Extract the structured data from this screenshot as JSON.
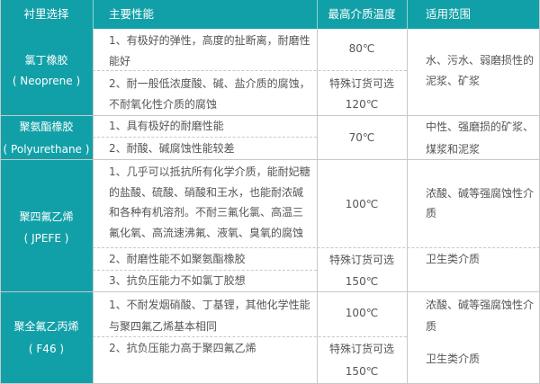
{
  "header": {
    "lining": "衬里选择",
    "properties": "主要性能",
    "max_temp": "最高介质温度",
    "scope": "适用范围"
  },
  "rows": [
    {
      "lining": [
        "氯丁橡胶",
        "( Neoprene )"
      ],
      "properties": [
        [
          "1、有极好的弹性，高度的扯断离，耐磨性",
          "能好"
        ],
        [
          "2、耐一般低浓度酸、碱、盐介质的腐蚀，",
          "不耐氧化性介质的腐蚀"
        ]
      ],
      "temps": [
        [
          "80℃"
        ],
        [
          "特殊订货可选",
          "120℃"
        ]
      ],
      "scope": [
        [
          "水、污水、弱磨损性的",
          "泥浆、矿浆"
        ]
      ]
    },
    {
      "lining": [
        "聚氨酯橡胶",
        "( Polyurethane )"
      ],
      "properties": [
        [
          "1、具有极好的耐磨性能"
        ],
        [
          "2、耐酸、碱腐蚀性能较差"
        ]
      ],
      "temps": [
        [
          "70℃"
        ]
      ],
      "scope": [
        [
          "中性、强磨损的矿浆、",
          "煤浆和泥浆"
        ]
      ]
    },
    {
      "lining": [
        "聚四氟乙烯",
        "( JPEFE )"
      ],
      "properties": [
        [
          "1、几乎可以抵抗所有化学介质，能耐妃糖",
          "的盐酸、硫酸、硝酸和王水，也能耐浓碱",
          "和各种有机溶剂。不耐三氟化氯、高温三",
          "氟化氧、高流速沸氟、液氧、臭氧的腐蚀"
        ],
        [
          "2、耐磨性能不如聚氨酯橡胶"
        ],
        [
          "3、抗负压能力不如氯丁胶想"
        ]
      ],
      "temps": [
        [
          "100℃"
        ],
        [
          "特殊订货可选",
          "150℃"
        ]
      ],
      "scope": [
        [
          "浓酸、碱等强腐蚀性介",
          "质"
        ],
        [
          "卫生类介质"
        ]
      ]
    },
    {
      "lining": [
        "聚全氟乙丙烯",
        "( F46 )"
      ],
      "properties": [
        [
          "1、不耐发烟硝酸、丁基锂，其他化学性能",
          "与聚四氟乙烯基本相同"
        ],
        [
          "2、抗负压能力高于聚四氟乙烯"
        ]
      ],
      "temps": [
        [
          "100℃"
        ],
        [
          "特殊订货可选",
          "150℃"
        ]
      ],
      "scope": [
        [
          "浓酸、碱等强腐蚀性介",
          "质"
        ],
        [
          "卫生类介质"
        ]
      ]
    }
  ],
  "colors": {
    "accent": "#12a0a8",
    "text": "#555555",
    "border": "#c8c8c8"
  }
}
